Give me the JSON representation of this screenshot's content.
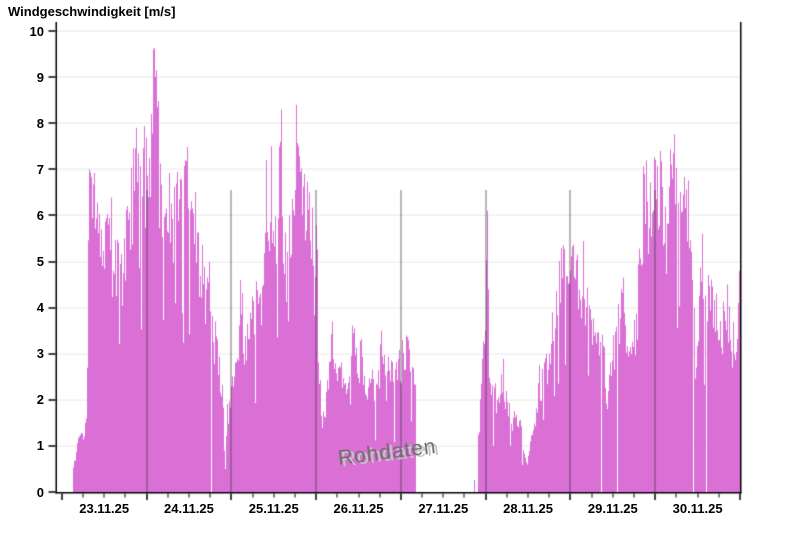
{
  "title": "Windgeschwindigkeit [m/s]",
  "watermark": "Rohdaten",
  "colors": {
    "fill": "#DA70D6",
    "axis": "#000000",
    "h_gridline": "#ececec",
    "day_gridline": "rgba(60,55,60,0.72)",
    "background": "#ffffff",
    "watermark_text": "#6e6e6e"
  },
  "chart_data": {
    "type": "area",
    "title": "Windgeschwindigkeit [m/s]",
    "series_name": "Windgeschwindigkeit Rohdaten",
    "unit": "m/s",
    "xlabel": "",
    "ylabel": "Windgeschwindigkeit [m/s]",
    "y_axis": {
      "min": 0,
      "max": 10,
      "step": 1,
      "tick_labels": [
        "0",
        "1",
        "2",
        "3",
        "4",
        "5",
        "6",
        "7",
        "8",
        "9",
        "10"
      ]
    },
    "x_axis": {
      "days": 8,
      "hours_total": 192,
      "minor_tick_hours": 6,
      "start": "23.11.25 00:00",
      "end": "01.12.25 00:00",
      "tick_labels": [
        "23.11.25",
        "24.11.25",
        "25.11.25",
        "26.11.25",
        "27.11.25",
        "28.11.25",
        "29.11.25",
        "30.11.25"
      ]
    },
    "grid": {
      "horizontal": true,
      "vertical_day_lines": true
    },
    "legend": "none",
    "watermark": "Rohdaten",
    "data_start_hour": 2.9,
    "gaps": [
      [
        0,
        2.9
      ],
      [
        100.0,
        116.58
      ],
      [
        116.78,
        117.78
      ]
    ],
    "envelope": [
      [
        2.9,
        0.4
      ],
      [
        3.5,
        0.7
      ],
      [
        4.5,
        1.0
      ],
      [
        5.5,
        1.6
      ],
      [
        6.2,
        1.1
      ],
      [
        6.8,
        1.7
      ],
      [
        7.3,
        3.5
      ],
      [
        7.7,
        6.8
      ],
      [
        8.3,
        6.3
      ],
      [
        9,
        6.1
      ],
      [
        10,
        5.8
      ],
      [
        11,
        5.2
      ],
      [
        12,
        5.3
      ],
      [
        13,
        5.6
      ],
      [
        13.8,
        5.1
      ],
      [
        15,
        5.2
      ],
      [
        15.8,
        4.9
      ],
      [
        16.5,
        4.6
      ],
      [
        17.3,
        4.8
      ],
      [
        18.2,
        5.6
      ],
      [
        19,
        6.2
      ],
      [
        19.8,
        6.4
      ],
      [
        20.6,
        6.6
      ],
      [
        21,
        7.3
      ],
      [
        21.6,
        6.4
      ],
      [
        22.3,
        6.6
      ],
      [
        23.2,
        6.9
      ],
      [
        24,
        7.0
      ],
      [
        24.6,
        7.1
      ],
      [
        25.1,
        7.8
      ],
      [
        25.8,
        9.3
      ],
      [
        26.3,
        8.8
      ],
      [
        26.9,
        8.0
      ],
      [
        27.6,
        7.2
      ],
      [
        28.4,
        6.5
      ],
      [
        29.3,
        6.0
      ],
      [
        30.2,
        5.5
      ],
      [
        31,
        5.7
      ],
      [
        32,
        6.1
      ],
      [
        33,
        6.5
      ],
      [
        34,
        6.8
      ],
      [
        35,
        6.9
      ],
      [
        35.8,
        6.6
      ],
      [
        36.6,
        6.3
      ],
      [
        37.3,
        5.9
      ],
      [
        38.2,
        5.4
      ],
      [
        39,
        5.0
      ],
      [
        39.8,
        4.7
      ],
      [
        40.6,
        4.4
      ],
      [
        41.4,
        4.5
      ],
      [
        42.2,
        4.1
      ],
      [
        43,
        3.6
      ],
      [
        43.8,
        3.1
      ],
      [
        44.6,
        2.6
      ],
      [
        45.4,
        2.1
      ],
      [
        46.2,
        1.0
      ],
      [
        46.8,
        1.7
      ],
      [
        47.6,
        2.0
      ],
      [
        48.4,
        2.3
      ],
      [
        49.2,
        2.6
      ],
      [
        50,
        3.0
      ],
      [
        50.6,
        3.8
      ],
      [
        51.2,
        3.3
      ],
      [
        52,
        3.2
      ],
      [
        53,
        3.5
      ],
      [
        54,
        3.9
      ],
      [
        55,
        4.1
      ],
      [
        56,
        3.7
      ],
      [
        56.8,
        4.3
      ],
      [
        57.6,
        5.8
      ],
      [
        58.2,
        5.5
      ],
      [
        58.9,
        6.4
      ],
      [
        59.5,
        5.6
      ],
      [
        60.2,
        5.8
      ],
      [
        60.8,
        5.5
      ],
      [
        61.5,
        6.0
      ],
      [
        62,
        7.2
      ],
      [
        62.6,
        5.4
      ],
      [
        63.3,
        4.9
      ],
      [
        64,
        5.3
      ],
      [
        64.8,
        6.0
      ],
      [
        65.5,
        6.5
      ],
      [
        66.3,
        7.6
      ],
      [
        67,
        6.8
      ],
      [
        67.8,
        6.1
      ],
      [
        68.6,
        6.4
      ],
      [
        69.4,
        6.0
      ],
      [
        70.2,
        5.6
      ],
      [
        71,
        5.5
      ],
      [
        71.8,
        5.6
      ],
      [
        72.4,
        4.6
      ],
      [
        73,
        2.0
      ],
      [
        73.8,
        1.5
      ],
      [
        74.6,
        1.8
      ],
      [
        75.5,
        2.4
      ],
      [
        76.4,
        3.2
      ],
      [
        77.2,
        3.0
      ],
      [
        78,
        2.9
      ],
      [
        79,
        2.7
      ],
      [
        80,
        2.5
      ],
      [
        80.8,
        2.2
      ],
      [
        81.6,
        2.4
      ],
      [
        82.4,
        3.1
      ],
      [
        83.2,
        3.2
      ],
      [
        84,
        2.8
      ],
      [
        85,
        2.6
      ],
      [
        86,
        2.4
      ],
      [
        87,
        2.2
      ],
      [
        88,
        2.1
      ],
      [
        89,
        2.2
      ],
      [
        90.2,
        2.9
      ],
      [
        91,
        2.4
      ],
      [
        92,
        2.3
      ],
      [
        93,
        2.6
      ],
      [
        94,
        2.8
      ],
      [
        95,
        2.9
      ],
      [
        96,
        3.0
      ],
      [
        97,
        3.1
      ],
      [
        98,
        3.0
      ],
      [
        99,
        2.6
      ],
      [
        99.9,
        2.2
      ],
      [
        116.6,
        0.2
      ],
      [
        116.7,
        0.3
      ],
      [
        117.8,
        1.1
      ],
      [
        118.4,
        1.9
      ],
      [
        119,
        2.6
      ],
      [
        119.6,
        3.4
      ],
      [
        120.1,
        4.6
      ],
      [
        120.35,
        5.9
      ],
      [
        120.7,
        3.4
      ],
      [
        121.2,
        2.4
      ],
      [
        122,
        1.9
      ],
      [
        122.8,
        2.1
      ],
      [
        123.6,
        2.0
      ],
      [
        124.4,
        2.5
      ],
      [
        125.2,
        2.2
      ],
      [
        126,
        2.0
      ],
      [
        126.8,
        1.7
      ],
      [
        127.6,
        1.5
      ],
      [
        128.4,
        1.8
      ],
      [
        129.2,
        1.6
      ],
      [
        130,
        1.3
      ],
      [
        130.8,
        0.9
      ],
      [
        131.6,
        0.75
      ],
      [
        132.4,
        0.9
      ],
      [
        133.2,
        1.3
      ],
      [
        134,
        1.7
      ],
      [
        134.8,
        2.1
      ],
      [
        135.7,
        2.4
      ],
      [
        136.6,
        2.6
      ],
      [
        137.5,
        2.8
      ],
      [
        138.4,
        3.4
      ],
      [
        139.2,
        3.6
      ],
      [
        140,
        4.3
      ],
      [
        140.8,
        4.8
      ],
      [
        141.6,
        5.0
      ],
      [
        142.4,
        4.6
      ],
      [
        143.2,
        4.7
      ],
      [
        144,
        4.6
      ],
      [
        144.8,
        4.8
      ],
      [
        145.6,
        4.9
      ],
      [
        146.4,
        4.5
      ],
      [
        147.2,
        4.4
      ],
      [
        148,
        4.3
      ],
      [
        149,
        4.0
      ],
      [
        150,
        3.8
      ],
      [
        151,
        3.6
      ],
      [
        152,
        3.5
      ],
      [
        153,
        3.3
      ],
      [
        153.8,
        2.6
      ],
      [
        154.3,
        2.0
      ],
      [
        155,
        2.5
      ],
      [
        156,
        3.0
      ],
      [
        157,
        3.4
      ],
      [
        157.8,
        3.8
      ],
      [
        158.6,
        4.2
      ],
      [
        159.4,
        3.6
      ],
      [
        160.2,
        3.3
      ],
      [
        161,
        2.9
      ],
      [
        161.8,
        3.2
      ],
      [
        162.6,
        3.7
      ],
      [
        163.3,
        4.6
      ],
      [
        163.9,
        5.5
      ],
      [
        164.5,
        6.3
      ],
      [
        165,
        6.6
      ],
      [
        165.6,
        6.1
      ],
      [
        166.2,
        6.0
      ],
      [
        166.8,
        6.4
      ],
      [
        167.4,
        6.8
      ],
      [
        168,
        6.9
      ],
      [
        168.6,
        6.4
      ],
      [
        169.3,
        7.0
      ],
      [
        169.9,
        6.1
      ],
      [
        170.6,
        5.4
      ],
      [
        171.4,
        5.5
      ],
      [
        172.2,
        6.6
      ],
      [
        172.9,
        6.9
      ],
      [
        173.6,
        6.5
      ],
      [
        174.4,
        6.6
      ],
      [
        175.2,
        6.4
      ],
      [
        176,
        6.5
      ],
      [
        176.8,
        6.4
      ],
      [
        177.6,
        6.1
      ],
      [
        178.4,
        5.2
      ],
      [
        179.2,
        3.6
      ],
      [
        179.7,
        2.8
      ],
      [
        180.3,
        3.9
      ],
      [
        181,
        4.8
      ],
      [
        181.4,
        5.2
      ],
      [
        182,
        4.7
      ],
      [
        182.8,
        4.2
      ],
      [
        183.6,
        4.0
      ],
      [
        184.4,
        4.2
      ],
      [
        185.2,
        3.9
      ],
      [
        186,
        3.6
      ],
      [
        186.8,
        3.5
      ],
      [
        187.6,
        4.0
      ],
      [
        188.2,
        4.2
      ],
      [
        188.8,
        3.7
      ],
      [
        189.6,
        3.3
      ],
      [
        190.4,
        3.2
      ],
      [
        191.2,
        3.6
      ],
      [
        191.8,
        4.4
      ],
      [
        192,
        4.7
      ]
    ],
    "forced_points": [
      [
        7.7,
        7.0
      ],
      [
        21,
        7.9
      ],
      [
        25.2,
        8.2
      ],
      [
        25.8,
        9.6
      ],
      [
        26.3,
        9.0
      ],
      [
        34.9,
        7.2
      ],
      [
        46.2,
        0.5
      ],
      [
        50.5,
        4.6
      ],
      [
        57.9,
        7.2
      ],
      [
        59.1,
        7.5
      ],
      [
        62,
        8.3
      ],
      [
        66.3,
        8.4
      ],
      [
        68.7,
        6.9
      ],
      [
        76.5,
        3.7
      ],
      [
        82.8,
        3.55
      ],
      [
        90.4,
        3.5
      ],
      [
        97.5,
        3.4
      ],
      [
        120.35,
        6.1
      ],
      [
        131.7,
        0.6
      ],
      [
        138.8,
        3.9
      ],
      [
        141.8,
        5.35
      ],
      [
        145.8,
        5.15
      ],
      [
        154.3,
        1.8
      ],
      [
        158.8,
        4.65
      ],
      [
        164.9,
        6.9
      ],
      [
        167.8,
        7.2
      ],
      [
        169.3,
        7.4
      ],
      [
        172.6,
        7.1
      ],
      [
        179.6,
        2.7
      ],
      [
        181.3,
        5.6
      ],
      [
        188.2,
        4.5
      ],
      [
        191.9,
        4.8
      ]
    ],
    "noise": {
      "seed": 20251123,
      "jitter": 0.33,
      "dip_prob": 0.07,
      "spike_prob": 0.05,
      "dropout_prob": 0.012
    }
  }
}
